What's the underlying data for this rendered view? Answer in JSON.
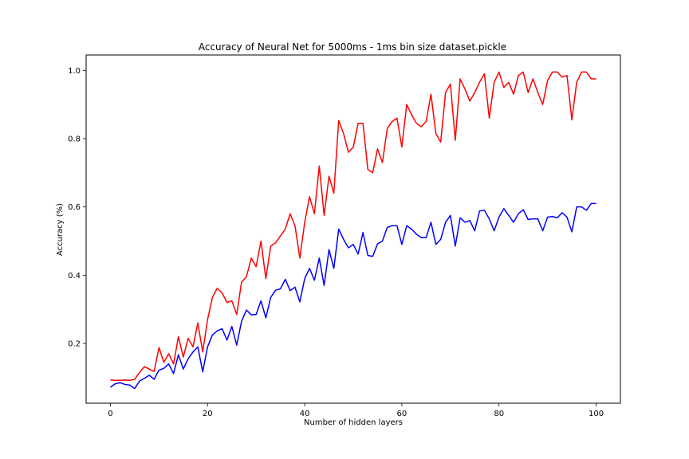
{
  "chart_data": {
    "type": "line",
    "title": "Accuracy of Neural Net for 5000ms - 1ms bin size dataset.pickle",
    "xlabel": "Number of hidden layers",
    "ylabel": "Accuracy (%)",
    "xlim": [
      -5,
      105
    ],
    "ylim": [
      0.025,
      1.045
    ],
    "xticks": [
      0,
      20,
      40,
      60,
      80,
      100
    ],
    "yticks": [
      0.2,
      0.4,
      0.6,
      0.8,
      1.0
    ],
    "xtick_labels": [
      "0",
      "20",
      "40",
      "60",
      "80",
      "100"
    ],
    "ytick_labels": [
      "0.2",
      "0.4",
      "0.6",
      "0.8",
      "1.0"
    ],
    "grid": false,
    "legend": "none",
    "series": [
      {
        "color": "#ff0000",
        "x": [
          0,
          1,
          2,
          3,
          4,
          5,
          6,
          7,
          8,
          9,
          10,
          11,
          12,
          13,
          14,
          15,
          16,
          17,
          18,
          19,
          20,
          21,
          22,
          23,
          24,
          25,
          26,
          27,
          28,
          29,
          30,
          31,
          32,
          33,
          34,
          35,
          36,
          37,
          38,
          39,
          40,
          41,
          42,
          43,
          44,
          45,
          46,
          47,
          48,
          49,
          50,
          51,
          52,
          53,
          54,
          55,
          56,
          57,
          58,
          59,
          60,
          61,
          62,
          63,
          64,
          65,
          66,
          67,
          68,
          69,
          70,
          71,
          72,
          73,
          74,
          75,
          76,
          77,
          78,
          79,
          80,
          81,
          82,
          83,
          84,
          85,
          86,
          87,
          88,
          89,
          90,
          91,
          92,
          93,
          94,
          95,
          96,
          97,
          98,
          99,
          100
        ],
        "y": [
          0.093,
          0.092,
          0.092,
          0.093,
          0.092,
          0.095,
          0.115,
          0.132,
          0.125,
          0.118,
          0.188,
          0.145,
          0.17,
          0.14,
          0.22,
          0.16,
          0.215,
          0.19,
          0.26,
          0.175,
          0.27,
          0.335,
          0.362,
          0.348,
          0.32,
          0.325,
          0.285,
          0.38,
          0.395,
          0.45,
          0.425,
          0.5,
          0.39,
          0.485,
          0.495,
          0.515,
          0.535,
          0.58,
          0.545,
          0.45,
          0.555,
          0.63,
          0.58,
          0.72,
          0.575,
          0.69,
          0.64,
          0.853,
          0.815,
          0.76,
          0.775,
          0.845,
          0.845,
          0.71,
          0.7,
          0.77,
          0.73,
          0.83,
          0.85,
          0.86,
          0.775,
          0.9,
          0.87,
          0.845,
          0.835,
          0.85,
          0.93,
          0.815,
          0.79,
          0.935,
          0.96,
          0.795,
          0.975,
          0.945,
          0.91,
          0.935,
          0.965,
          0.99,
          0.86,
          0.965,
          0.995,
          0.95,
          0.965,
          0.93,
          0.985,
          0.995,
          0.935,
          0.975,
          0.935,
          0.9,
          0.97,
          0.995,
          0.995,
          0.98,
          0.985,
          0.855,
          0.965,
          0.995,
          0.995,
          0.975,
          0.975
        ]
      },
      {
        "color": "#0000ff",
        "x": [
          0,
          1,
          2,
          3,
          4,
          5,
          6,
          7,
          8,
          9,
          10,
          11,
          12,
          13,
          14,
          15,
          16,
          17,
          18,
          19,
          20,
          21,
          22,
          23,
          24,
          25,
          26,
          27,
          28,
          29,
          30,
          31,
          32,
          33,
          34,
          35,
          36,
          37,
          38,
          39,
          40,
          41,
          42,
          43,
          44,
          45,
          46,
          47,
          48,
          49,
          50,
          51,
          52,
          53,
          54,
          55,
          56,
          57,
          58,
          59,
          60,
          61,
          62,
          63,
          64,
          65,
          66,
          67,
          68,
          69,
          70,
          71,
          72,
          73,
          74,
          75,
          76,
          77,
          78,
          79,
          80,
          81,
          82,
          83,
          84,
          85,
          86,
          87,
          88,
          89,
          90,
          91,
          92,
          93,
          94,
          95,
          96,
          97,
          98,
          99,
          100
        ],
        "y": [
          0.072,
          0.082,
          0.085,
          0.08,
          0.078,
          0.068,
          0.09,
          0.098,
          0.107,
          0.095,
          0.122,
          0.127,
          0.14,
          0.112,
          0.167,
          0.125,
          0.155,
          0.175,
          0.19,
          0.117,
          0.19,
          0.225,
          0.237,
          0.243,
          0.21,
          0.25,
          0.195,
          0.265,
          0.298,
          0.284,
          0.285,
          0.325,
          0.275,
          0.335,
          0.356,
          0.36,
          0.388,
          0.355,
          0.365,
          0.322,
          0.39,
          0.42,
          0.385,
          0.45,
          0.37,
          0.475,
          0.42,
          0.535,
          0.505,
          0.48,
          0.49,
          0.462,
          0.525,
          0.458,
          0.455,
          0.492,
          0.5,
          0.54,
          0.545,
          0.545,
          0.49,
          0.545,
          0.535,
          0.52,
          0.51,
          0.51,
          0.555,
          0.49,
          0.505,
          0.555,
          0.575,
          0.485,
          0.568,
          0.555,
          0.56,
          0.53,
          0.588,
          0.59,
          0.565,
          0.53,
          0.57,
          0.595,
          0.575,
          0.555,
          0.58,
          0.592,
          0.563,
          0.565,
          0.565,
          0.53,
          0.57,
          0.572,
          0.568,
          0.583,
          0.57,
          0.527,
          0.6,
          0.6,
          0.59,
          0.61,
          0.61
        ]
      }
    ]
  }
}
